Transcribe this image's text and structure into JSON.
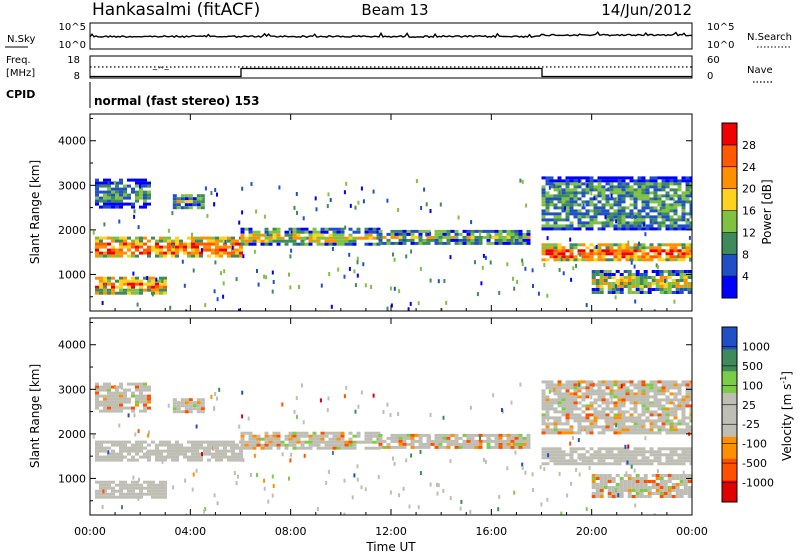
{
  "header": {
    "station": "Hankasalmi (fitACF)",
    "beam": "Beam 13",
    "date": "14/Jun/2012"
  },
  "noise_panel": {
    "left_label": "N.Sky",
    "left_ticks": [
      "10^5",
      "10^0"
    ],
    "right_label": "N.Search",
    "right_ticks": [
      "10^5",
      "10^0"
    ]
  },
  "freq_panel": {
    "left_label_1": "Freq.",
    "left_label_2": "[MHz]",
    "left_ticks": [
      "18",
      "8"
    ],
    "right_label": "Nave",
    "right_ticks": [
      "60",
      "0"
    ]
  },
  "cpid_panel": {
    "label": "CPID",
    "text": "normal (fast stereo) 153"
  },
  "colors": {
    "power_scale": [
      "#0000ff",
      "#2050c8",
      "#3f8a5a",
      "#7fc242",
      "#ffd21e",
      "#ff9000",
      "#ff5a00",
      "#f00000"
    ],
    "velocity_scale": [
      "#e00000",
      "#ff5000",
      "#ff9000",
      "#bebeb4",
      "#bebeb4",
      "#7dcc46",
      "#3f8a5a",
      "#2050c8"
    ],
    "ground_scatter": "#bebeb4"
  },
  "chart_data": [
    {
      "type": "heatmap",
      "title": "Power",
      "ylabel": "Slant Range [km]",
      "colorbar_label": "Power [dB]",
      "colorbar_ticks": [
        "28",
        "24",
        "20",
        "16",
        "12",
        "8",
        "4"
      ],
      "x_range_hours": [
        0,
        24
      ],
      "ylim": [
        180,
        4600
      ],
      "yticks": [
        "4000",
        "3000",
        "2000",
        "1000"
      ],
      "regions": [
        {
          "x": [
            0.2,
            6
          ],
          "y": [
            1400,
            1850
          ],
          "level": "strong"
        },
        {
          "x": [
            6,
            11.5
          ],
          "y": [
            1650,
            2050
          ],
          "level": "medium"
        },
        {
          "x": [
            11.5,
            17.5
          ],
          "y": [
            1700,
            2000
          ],
          "level": "medium"
        },
        {
          "x": [
            0.2,
            3
          ],
          "y": [
            600,
            950
          ],
          "level": "strong"
        },
        {
          "x": [
            18,
            24
          ],
          "y": [
            1300,
            1700
          ],
          "level": "strong"
        },
        {
          "x": [
            0.2,
            2.3
          ],
          "y": [
            2500,
            3150
          ],
          "level": "weak"
        },
        {
          "x": [
            3.3,
            4.5
          ],
          "y": [
            2500,
            2800
          ],
          "level": "medium"
        },
        {
          "x": [
            18,
            24
          ],
          "y": [
            2000,
            3200
          ],
          "level": "weak"
        },
        {
          "x": [
            20,
            24
          ],
          "y": [
            600,
            1100
          ],
          "level": "medium"
        }
      ]
    },
    {
      "type": "heatmap",
      "title": "Velocity",
      "ylabel": "Slant Range [km]",
      "colorbar_label": "Velocity [m s^-1]",
      "colorbar_ticks": [
        "1000",
        "500",
        "100",
        "25",
        "-25",
        "-100",
        "-500",
        "-1000"
      ],
      "x_range_hours": [
        0,
        24
      ],
      "ylim": [
        180,
        4600
      ],
      "yticks": [
        "4000",
        "3000",
        "2000",
        "1000"
      ],
      "xticks": [
        "00:00",
        "04:00",
        "08:00",
        "12:00",
        "16:00",
        "20:00",
        "00:00"
      ],
      "xlabel": "Time UT"
    }
  ]
}
